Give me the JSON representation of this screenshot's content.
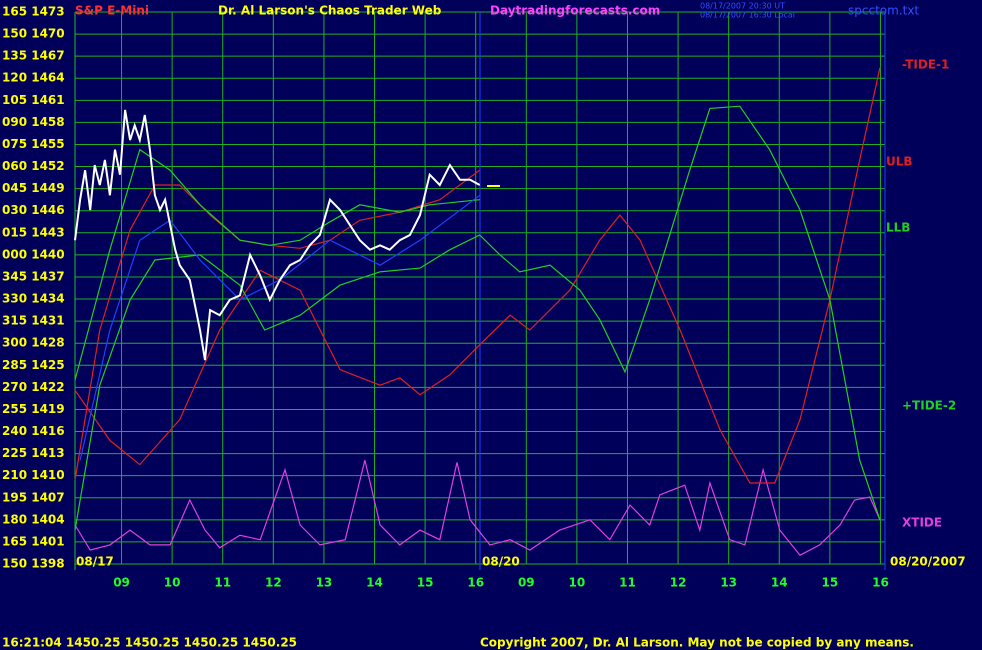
{
  "chart_data": {
    "type": "line",
    "title": "Dr. Al Larson's Chaos Trader Web",
    "symbol": "S&P E-Mini",
    "site": "Daytradingforecasts.com",
    "timestamp_ut": "08/17/2007 20:30 UT",
    "timestamp_local": "08/17/2007 16:30 Local",
    "file": "spcctom.txt",
    "day1": "08/17",
    "day2": "08/20",
    "end_date": "08/20/2007",
    "quote": "16:21:04  1450.25  1450.25  1450.25  1450.25",
    "copyright": "Copyright 2007, Dr. Al Larson. May not be copied by any means.",
    "xlim": [
      0.08,
      16.09
    ],
    "ylim": [
      1398,
      1473
    ],
    "grid": true,
    "xticks": [
      {
        "value": 1,
        "label": "09"
      },
      {
        "value": 2,
        "label": "10"
      },
      {
        "value": 3,
        "label": "11"
      },
      {
        "value": 4,
        "label": "12"
      },
      {
        "value": 5,
        "label": "13"
      },
      {
        "value": 6,
        "label": "14"
      },
      {
        "value": 7,
        "label": "15"
      },
      {
        "value": 8,
        "label": "16"
      },
      {
        "value": 9,
        "label": "09"
      },
      {
        "value": 10,
        "label": "10"
      },
      {
        "value": 11,
        "label": "11"
      },
      {
        "value": 12,
        "label": "12"
      },
      {
        "value": 13,
        "label": "13"
      },
      {
        "value": 14,
        "label": "14"
      },
      {
        "value": 15,
        "label": "15"
      },
      {
        "value": 16,
        "label": "16"
      }
    ],
    "yticks": [
      {
        "value": 1398,
        "label": "150 1398"
      },
      {
        "value": 1401,
        "label": "165 1401"
      },
      {
        "value": 1404,
        "label": "180 1404"
      },
      {
        "value": 1407,
        "label": "195 1407"
      },
      {
        "value": 1410,
        "label": "210 1410"
      },
      {
        "value": 1413,
        "label": "225 1413"
      },
      {
        "value": 1416,
        "label": "240 1416"
      },
      {
        "value": 1419,
        "label": "255 1419"
      },
      {
        "value": 1422,
        "label": "270 1422"
      },
      {
        "value": 1425,
        "label": "285 1425"
      },
      {
        "value": 1428,
        "label": "300 1428"
      },
      {
        "value": 1431,
        "label": "315 1431"
      },
      {
        "value": 1434,
        "label": "330 1434"
      },
      {
        "value": 1437,
        "label": "345 1437"
      },
      {
        "value": 1440,
        "label": "000 1440"
      },
      {
        "value": 1443,
        "label": "015 1443"
      },
      {
        "value": 1446,
        "label": "030 1446"
      },
      {
        "value": 1449,
        "label": "045 1449"
      },
      {
        "value": 1452,
        "label": "060 1452"
      },
      {
        "value": 1455,
        "label": "075 1455"
      },
      {
        "value": 1458,
        "label": "090 1458"
      },
      {
        "value": 1461,
        "label": "105 1461"
      },
      {
        "value": 1464,
        "label": "120 1464"
      },
      {
        "value": 1467,
        "label": "135 1467"
      },
      {
        "value": 1470,
        "label": "150 1470"
      },
      {
        "value": 1473,
        "label": "165 1473"
      }
    ],
    "series": [
      {
        "name": "XTIDE",
        "color": "#e040e0",
        "x": [
          0.08,
          0.38,
          0.77,
          1.17,
          1.56,
          1.96,
          2.35,
          2.65,
          2.94,
          3.34,
          3.74,
          4.23,
          4.53,
          4.92,
          5.42,
          5.81,
          6.11,
          6.5,
          6.9,
          7.29,
          7.63,
          7.89,
          8.28,
          8.68,
          9.07,
          9.66,
          10.26,
          10.65,
          11.05,
          11.44,
          11.64,
          12.13,
          12.43,
          12.63,
          13.02,
          13.32,
          13.68,
          14.01,
          14.41,
          14.8,
          15.2,
          15.49,
          15.79,
          15.99
        ],
        "values": [
          1403.3,
          1399.9,
          1400.6,
          1402.6,
          1400.6,
          1400.6,
          1406.7,
          1402.6,
          1400.2,
          1401.9,
          1401.3,
          1410.8,
          1403.3,
          1400.6,
          1401.3,
          1412.1,
          1403.3,
          1400.6,
          1402.6,
          1401.3,
          1411.8,
          1404.0,
          1400.6,
          1401.3,
          1399.9,
          1402.6,
          1404.0,
          1401.3,
          1406.0,
          1403.3,
          1407.4,
          1408.7,
          1402.6,
          1409.0,
          1401.3,
          1400.6,
          1410.8,
          1402.6,
          1399.2,
          1400.6,
          1403.3,
          1406.7,
          1407.1,
          1404.0
        ]
      },
      {
        "name": "-TIDE-1",
        "color": "#e02020",
        "x": [
          0.08,
          0.77,
          1.36,
          2.15,
          2.94,
          3.74,
          4.53,
          5.32,
          6.11,
          6.5,
          6.9,
          7.49,
          8.08,
          8.68,
          9.07,
          9.86,
          10.45,
          10.85,
          11.25,
          12.04,
          12.83,
          13.42,
          13.91,
          14.41,
          15.0,
          15.59,
          15.99
        ],
        "values": [
          1421.6,
          1414.8,
          1411.5,
          1417.6,
          1429.8,
          1437.9,
          1435.2,
          1424.4,
          1422.3,
          1423.3,
          1421.0,
          1423.7,
          1427.8,
          1431.8,
          1429.8,
          1435.2,
          1442.0,
          1445.4,
          1442.0,
          1429.8,
          1416.2,
          1409.0,
          1409.0,
          1417.6,
          1433.9,
          1452.9,
          1465.4
        ]
      },
      {
        "name": "ULB",
        "color": "#e02020",
        "x": [
          0.08,
          0.57,
          1.17,
          1.66,
          2.15,
          2.75,
          3.34,
          3.93,
          4.53,
          5.12,
          5.71,
          6.5,
          7.29,
          8.08
        ],
        "values": [
          1409.4,
          1429.8,
          1443.4,
          1449.5,
          1449.5,
          1445.4,
          1442.0,
          1441.3,
          1440.9,
          1442.0,
          1444.7,
          1445.8,
          1447.5,
          1451.5
        ]
      },
      {
        "name": "LLB",
        "color": "#20d020",
        "x": [
          0.08,
          0.77,
          1.36,
          1.96,
          2.55,
          3.34,
          3.93,
          4.53,
          5.12,
          5.71,
          6.5,
          7.09,
          8.08
        ],
        "values": [
          1423.0,
          1440.7,
          1454.3,
          1451.5,
          1446.8,
          1442.0,
          1441.3,
          1442.0,
          1444.5,
          1446.8,
          1445.8,
          1446.8,
          1447.5
        ]
      },
      {
        "name": "+TIDE-2",
        "color": "#20d020",
        "x": [
          0.08,
          0.57,
          1.17,
          1.66,
          2.55,
          3.34,
          3.83,
          4.53,
          5.32,
          6.11,
          6.9,
          7.49,
          8.08,
          8.48,
          8.87,
          9.47,
          10.06,
          10.45,
          10.95,
          11.44,
          12.23,
          12.63,
          13.22,
          13.81,
          14.41,
          15.0,
          15.59,
          15.99
        ],
        "values": [
          1402.6,
          1422.3,
          1433.9,
          1439.3,
          1440.0,
          1435.9,
          1429.8,
          1431.8,
          1435.9,
          1437.7,
          1438.2,
          1440.7,
          1442.7,
          1440.0,
          1437.7,
          1438.6,
          1435.2,
          1431.2,
          1424.1,
          1433.9,
          1451.5,
          1459.9,
          1460.2,
          1454.3,
          1446.1,
          1433.9,
          1412.1,
          1404.0
        ]
      },
      {
        "color": "#2040ff",
        "x": [
          0.18,
          0.77,
          1.36,
          1.96,
          2.55,
          3.34,
          4.13,
          5.12,
          6.11,
          6.9,
          8.08
        ],
        "values": [
          1412.1,
          1429.8,
          1442.0,
          1444.7,
          1439.3,
          1433.9,
          1436.6,
          1442.0,
          1438.6,
          1442.0,
          1448.1
        ]
      },
      {
        "color": "#ffffff",
        "x": [
          0.08,
          0.18,
          0.28,
          0.38,
          0.47,
          0.57,
          0.67,
          0.77,
          0.87,
          0.97,
          1.07,
          1.17,
          1.26,
          1.36,
          1.46,
          1.56,
          1.66,
          1.76,
          1.86,
          1.96,
          2.06,
          2.15,
          2.35,
          2.55,
          2.65,
          2.75,
          2.94,
          3.14,
          3.34,
          3.54,
          3.74,
          3.93,
          4.13,
          4.33,
          4.53,
          4.72,
          4.92,
          5.12,
          5.32,
          5.51,
          5.71,
          5.91,
          6.11,
          6.3,
          6.5,
          6.7,
          6.9,
          7.09,
          7.29,
          7.49,
          7.69,
          7.89,
          8.08
        ],
        "values": [
          1442.0,
          1447.5,
          1451.5,
          1446.1,
          1452.2,
          1449.5,
          1452.9,
          1448.1,
          1454.3,
          1450.9,
          1459.7,
          1455.6,
          1457.6,
          1455.6,
          1459.0,
          1454.3,
          1448.1,
          1446.1,
          1447.5,
          1444.1,
          1440.7,
          1438.6,
          1436.6,
          1429.8,
          1425.7,
          1432.5,
          1431.8,
          1433.9,
          1434.5,
          1440.0,
          1437.2,
          1433.9,
          1436.6,
          1438.6,
          1439.3,
          1441.3,
          1442.7,
          1447.5,
          1446.1,
          1444.1,
          1442.0,
          1440.7,
          1441.3,
          1440.7,
          1442.0,
          1442.7,
          1445.4,
          1450.9,
          1449.5,
          1452.2,
          1450.2,
          1450.2,
          1449.5
        ]
      }
    ]
  }
}
